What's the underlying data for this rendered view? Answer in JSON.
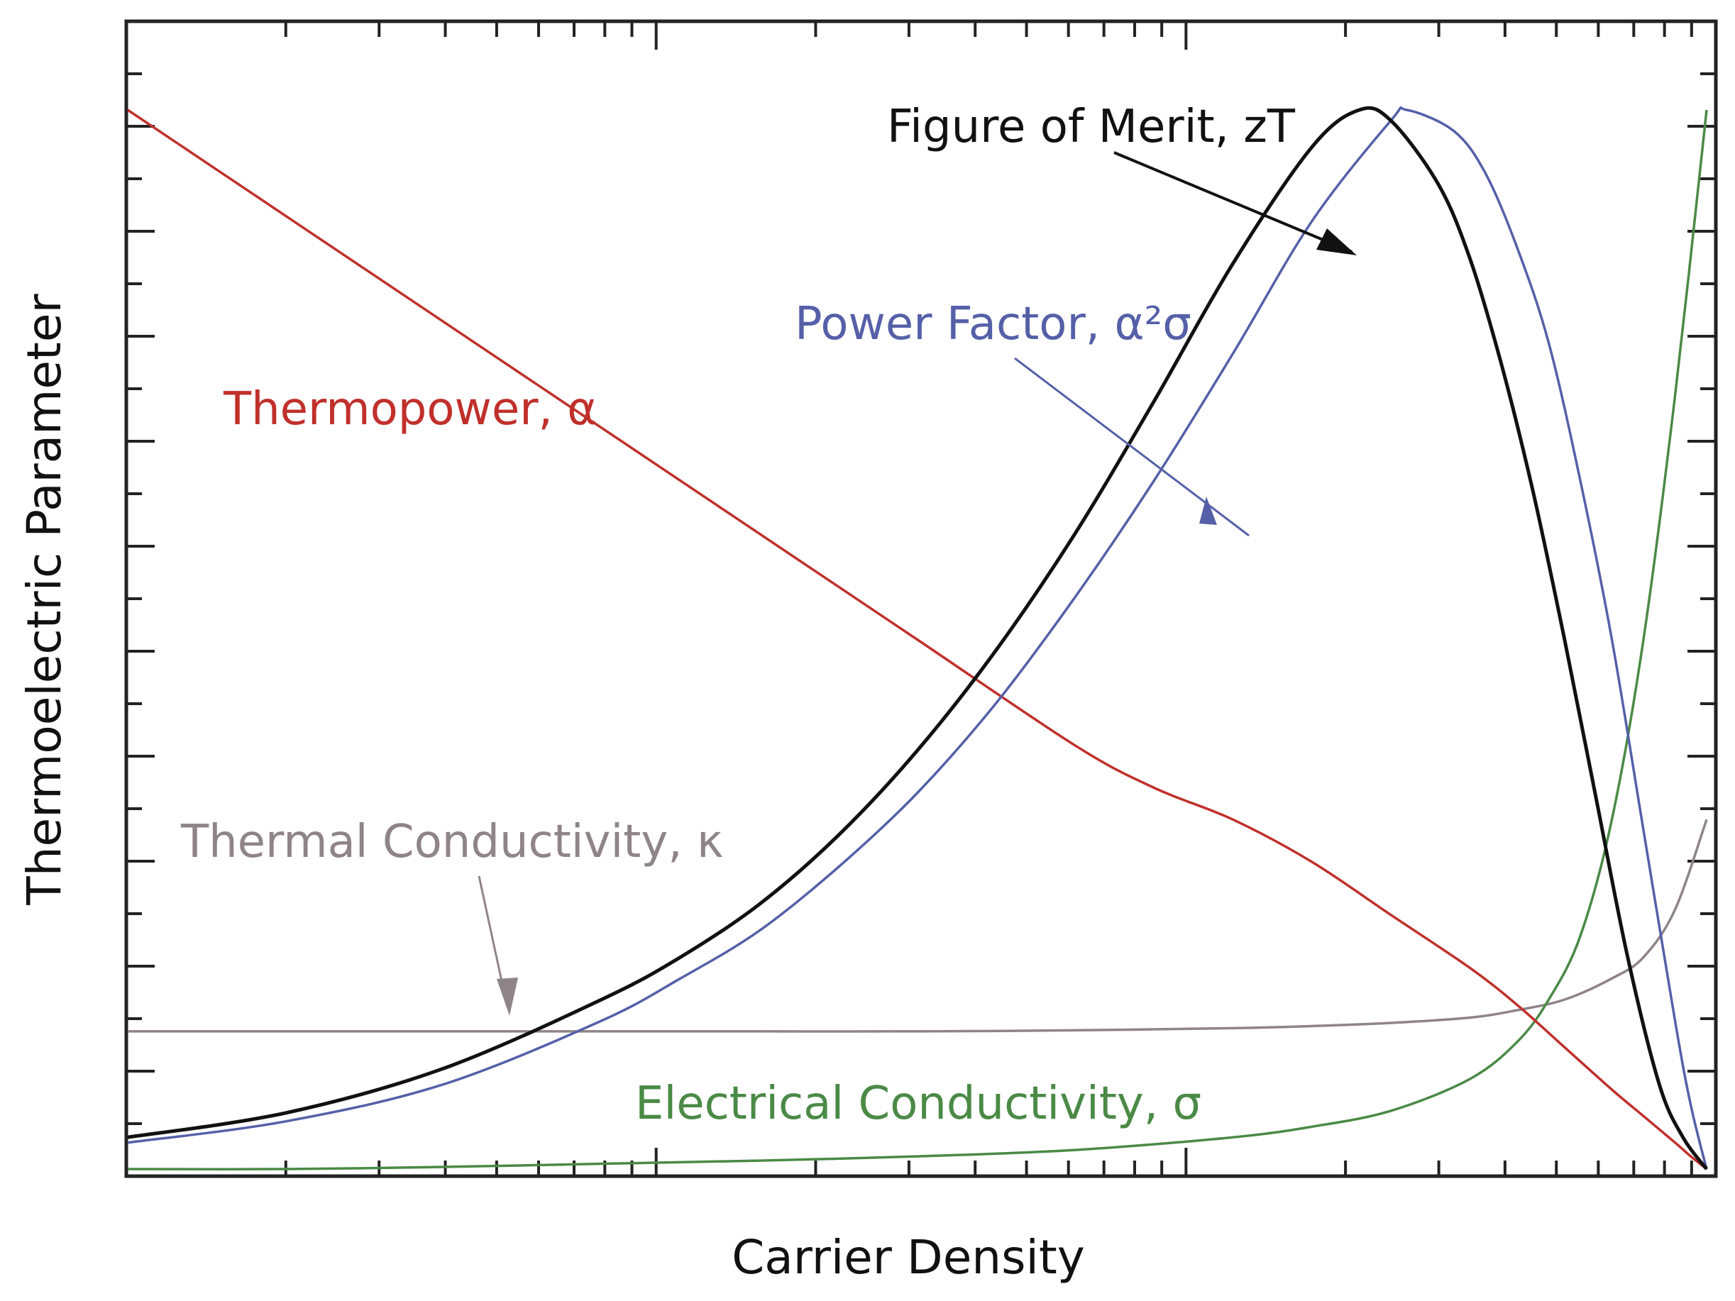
{
  "chart_data": {
    "type": "line",
    "title": "",
    "xlabel": "Carrier Density",
    "ylabel": "Thermoelectric Parameter",
    "x_scale": "log",
    "x_tick_labels": "none",
    "y_tick_labels": "none",
    "xlim": [
      0,
      1
    ],
    "ylim": [
      0,
      1
    ],
    "grid": false,
    "legend": "none (curves labeled directly)",
    "series": [
      {
        "name": "Thermopower, α",
        "color": "#c0302b",
        "x": [
          0.0,
          0.1,
          0.2,
          0.3,
          0.4,
          0.5,
          0.6,
          0.65,
          0.7,
          0.75,
          0.8,
          0.85,
          0.88,
          0.91,
          0.94,
          0.96,
          0.98,
          0.99,
          1.0
        ],
        "y": [
          1.0,
          0.9,
          0.8,
          0.7,
          0.6,
          0.5,
          0.4,
          0.36,
          0.33,
          0.29,
          0.24,
          0.19,
          0.155,
          0.115,
          0.075,
          0.05,
          0.025,
          0.012,
          0.0
        ]
      },
      {
        "name": "Figure of Merit, zT",
        "color": "#111111",
        "x": [
          0.0,
          0.1,
          0.2,
          0.3,
          0.35,
          0.4,
          0.45,
          0.5,
          0.55,
          0.6,
          0.65,
          0.7,
          0.75,
          0.78,
          0.8,
          0.83,
          0.85,
          0.87,
          0.89,
          0.91,
          0.93,
          0.95,
          0.97,
          0.985,
          1.0
        ],
        "y": [
          0.03,
          0.053,
          0.095,
          0.16,
          0.2,
          0.25,
          0.315,
          0.395,
          0.49,
          0.6,
          0.725,
          0.855,
          0.965,
          1.0,
          0.99,
          0.93,
          0.86,
          0.76,
          0.64,
          0.5,
          0.35,
          0.2,
          0.08,
          0.03,
          0.0
        ]
      },
      {
        "name": "Power Factor, α²σ",
        "color": "#5560a8",
        "x": [
          0.0,
          0.1,
          0.2,
          0.3,
          0.35,
          0.4,
          0.45,
          0.5,
          0.55,
          0.6,
          0.65,
          0.7,
          0.75,
          0.8,
          0.81,
          0.84,
          0.86,
          0.88,
          0.9,
          0.92,
          0.94,
          0.96,
          0.98,
          0.99,
          1.0
        ],
        "y": [
          0.025,
          0.045,
          0.08,
          0.14,
          0.18,
          0.225,
          0.285,
          0.355,
          0.44,
          0.54,
          0.65,
          0.77,
          0.895,
          0.99,
          1.0,
          0.98,
          0.94,
          0.87,
          0.78,
          0.65,
          0.5,
          0.32,
          0.14,
          0.06,
          0.0
        ]
      },
      {
        "name": "Thermal Conductivity, κ",
        "color": "#8f8488",
        "x": [
          0.0,
          0.1,
          0.2,
          0.3,
          0.4,
          0.5,
          0.6,
          0.7,
          0.75,
          0.8,
          0.85,
          0.88,
          0.91,
          0.94,
          0.96,
          0.98,
          1.0
        ],
        "y": [
          0.13,
          0.13,
          0.13,
          0.13,
          0.13,
          0.13,
          0.131,
          0.133,
          0.135,
          0.138,
          0.143,
          0.15,
          0.16,
          0.18,
          0.2,
          0.245,
          0.33
        ]
      },
      {
        "name": "Electrical Conductivity, σ",
        "color": "#4a8a46",
        "x": [
          0.0,
          0.1,
          0.2,
          0.3,
          0.4,
          0.5,
          0.6,
          0.7,
          0.75,
          0.8,
          0.85,
          0.88,
          0.9,
          0.92,
          0.94,
          0.96,
          0.98,
          1.0
        ],
        "y": [
          0.0,
          0.0,
          0.002,
          0.005,
          0.008,
          0.012,
          0.018,
          0.03,
          0.04,
          0.055,
          0.085,
          0.12,
          0.16,
          0.22,
          0.33,
          0.5,
          0.73,
          1.0
        ]
      }
    ],
    "annotations": [
      {
        "text": "Figure of Merit, zT",
        "series": "Figure of Merit, zT",
        "color": "#111111"
      },
      {
        "text": "Power Factor, α²σ",
        "series": "Power Factor, α²σ",
        "color": "#5560a8"
      },
      {
        "text": "Thermopower, α",
        "series": "Thermopower, α",
        "color": "#c0302b"
      },
      {
        "text": "Thermal Conductivity, κ",
        "series": "Thermal Conductivity, κ",
        "color": "#8f8488"
      },
      {
        "text": "Electrical Conductivity, σ",
        "series": "Electrical Conductivity, σ",
        "color": "#4a8a46"
      }
    ]
  }
}
